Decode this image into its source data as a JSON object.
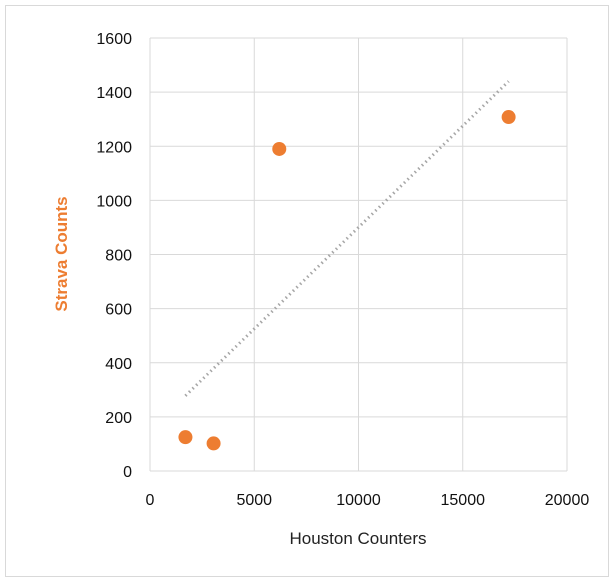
{
  "chart_data": {
    "type": "scatter",
    "title": "",
    "xlabel": "Houston Counters",
    "ylabel": "Strava Counts",
    "xlim": [
      0,
      20000
    ],
    "ylim": [
      0,
      1600
    ],
    "xticks": [
      0,
      5000,
      10000,
      15000,
      20000
    ],
    "yticks": [
      0,
      200,
      400,
      600,
      800,
      1000,
      1200,
      1400,
      1600
    ],
    "grid": true,
    "legend": "none",
    "series": [
      {
        "points": [
          {
            "x": 1700,
            "y": 125
          },
          {
            "x": 3050,
            "y": 102
          },
          {
            "x": 6200,
            "y": 1190
          },
          {
            "x": 17200,
            "y": 1308
          }
        ],
        "color": "#ED7D31"
      }
    ],
    "trendline": {
      "type": "linear",
      "style": "dotted",
      "color": "#a6a6a6",
      "from": {
        "x": 1700,
        "y": 278
      },
      "to": {
        "x": 17200,
        "y": 1440
      }
    },
    "ylabel_color": "#ED7D31"
  }
}
